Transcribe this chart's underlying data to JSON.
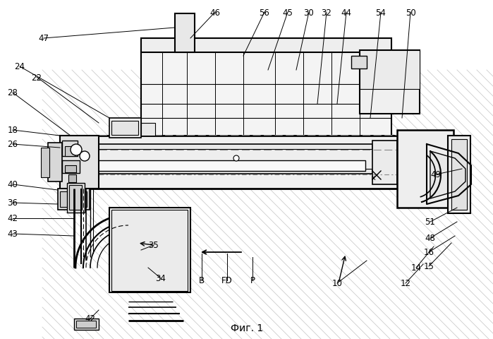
{
  "title": "Фиг. 1",
  "bg_color": "#ffffff",
  "lc": "#000000",
  "fig_width": 6.99,
  "fig_height": 4.81,
  "dpi": 100,
  "labels_top": [
    [
      "46",
      305,
      18
    ],
    [
      "56",
      375,
      18
    ],
    [
      "45",
      408,
      18
    ],
    [
      "30",
      438,
      18
    ],
    [
      "32",
      463,
      18
    ],
    [
      "44",
      491,
      18
    ],
    [
      "54",
      540,
      18
    ],
    [
      "50",
      582,
      18
    ]
  ],
  "labels_left": [
    [
      "47",
      62,
      55
    ],
    [
      "24",
      28,
      95
    ],
    [
      "22",
      52,
      110
    ],
    [
      "28",
      18,
      132
    ],
    [
      "18",
      18,
      182
    ],
    [
      "26",
      18,
      200
    ],
    [
      "40",
      18,
      262
    ],
    [
      "36",
      18,
      286
    ],
    [
      "42",
      18,
      308
    ],
    [
      "43",
      18,
      330
    ]
  ],
  "labels_bottom": [
    [
      "42",
      128,
      452
    ],
    [
      "35",
      218,
      348
    ],
    [
      "34",
      228,
      395
    ],
    [
      "B",
      286,
      395
    ],
    [
      "FD",
      322,
      395
    ],
    [
      "P",
      358,
      395
    ],
    [
      "10",
      472,
      400
    ],
    [
      "12",
      573,
      400
    ],
    [
      "14",
      582,
      378
    ],
    [
      "15",
      598,
      378
    ],
    [
      "16",
      598,
      358
    ],
    [
      "48",
      598,
      338
    ],
    [
      "51",
      598,
      315
    ],
    [
      "49",
      615,
      248
    ]
  ]
}
